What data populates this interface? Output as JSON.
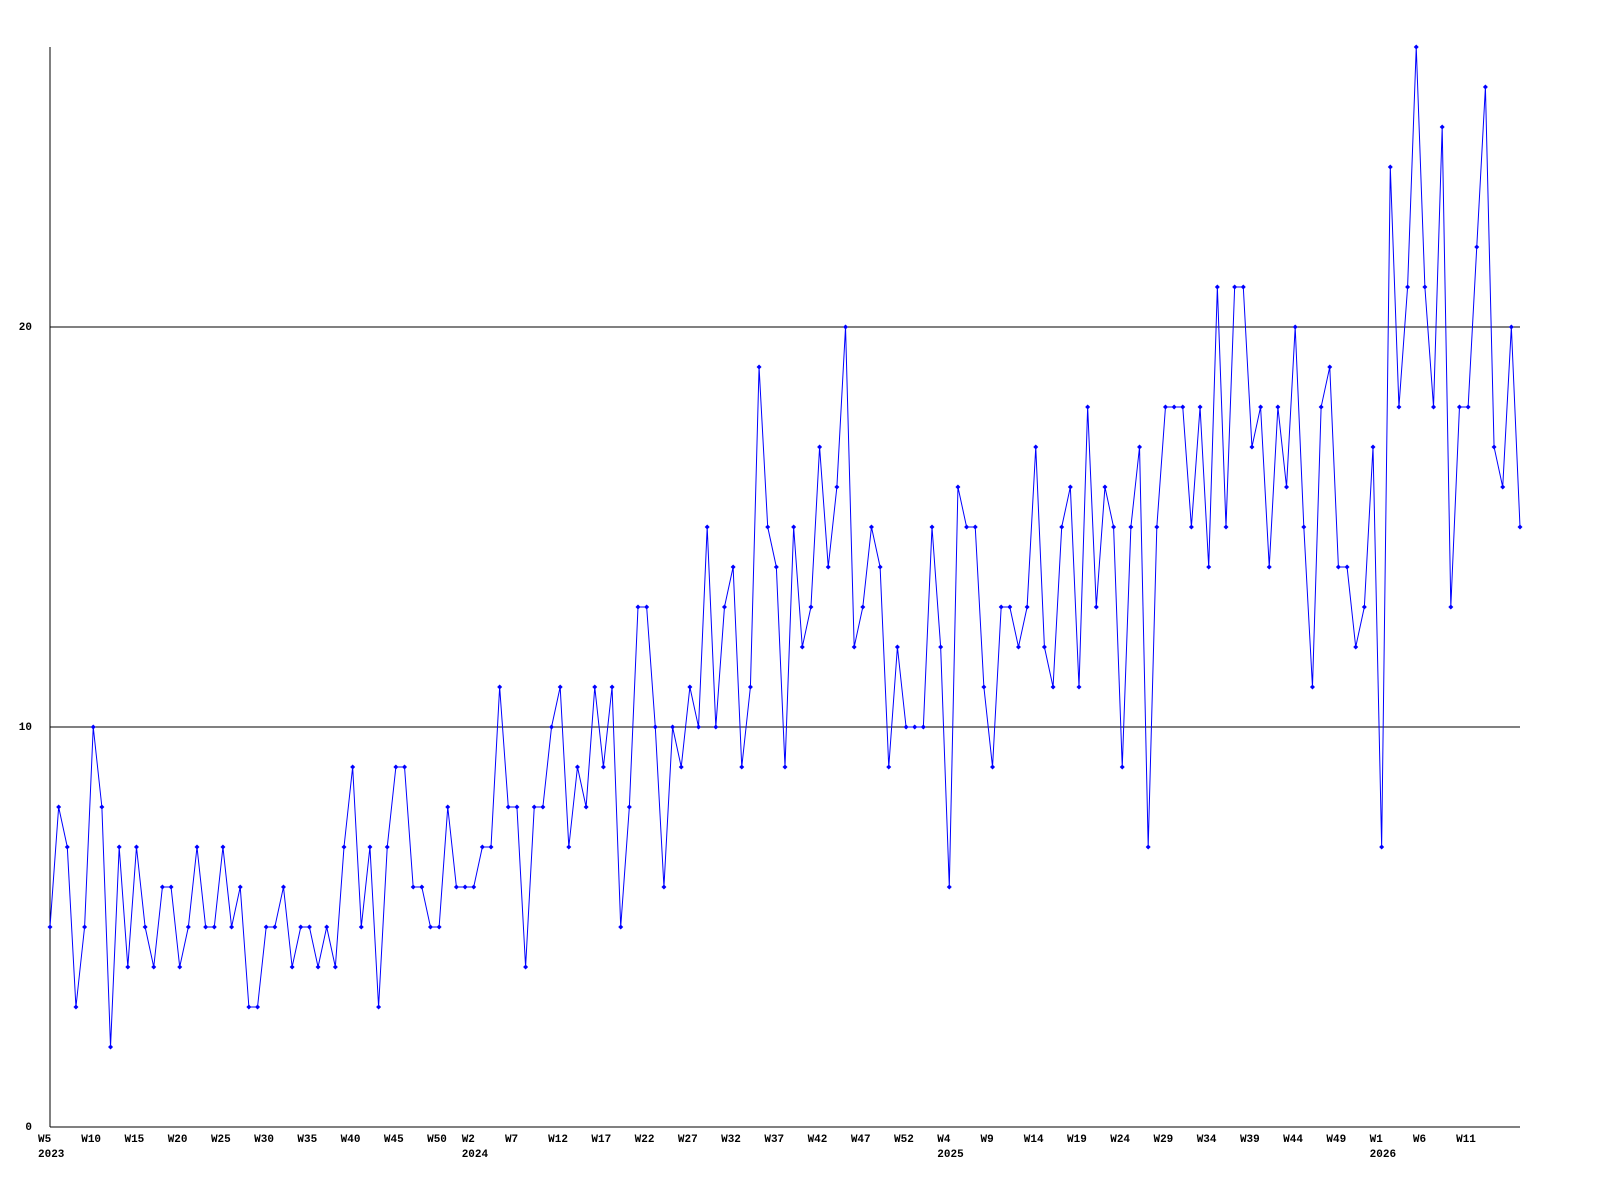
{
  "chart_data": {
    "type": "line",
    "categories": [
      "W5",
      null,
      null,
      null,
      null,
      "W10",
      null,
      null,
      null,
      null,
      "W15",
      null,
      null,
      null,
      null,
      "W20",
      null,
      null,
      null,
      null,
      "W25",
      null,
      null,
      null,
      null,
      "W30",
      null,
      null,
      null,
      null,
      "W35",
      null,
      null,
      null,
      null,
      "W40",
      null,
      null,
      null,
      null,
      "W45",
      null,
      null,
      null,
      null,
      "W50",
      null,
      null,
      null,
      "W2",
      null,
      null,
      null,
      null,
      "W7",
      null,
      null,
      null,
      null,
      "W12",
      null,
      null,
      null,
      null,
      "W17",
      null,
      null,
      null,
      null,
      "W22",
      null,
      null,
      null,
      null,
      "W27",
      null,
      null,
      null,
      null,
      "W32",
      null,
      null,
      null,
      null,
      "W37",
      null,
      null,
      null,
      null,
      "W42",
      null,
      null,
      null,
      null,
      "W47",
      null,
      null,
      null,
      null,
      "W52",
      null,
      null,
      null,
      null,
      "W4",
      null,
      null,
      null,
      null,
      "W9",
      null,
      null,
      null,
      null,
      "W14",
      null,
      null,
      null,
      null,
      "W19",
      null,
      null,
      null,
      null,
      "W24",
      null,
      null,
      null,
      null,
      "W29",
      null,
      null,
      null,
      null,
      "W34",
      null,
      null,
      null,
      null,
      "W39",
      null,
      null,
      null,
      null,
      "W44",
      null,
      null,
      null,
      null,
      "W49",
      null,
      null,
      null,
      null,
      "W1",
      null,
      null,
      null,
      null,
      "W6",
      null,
      null,
      null,
      null,
      "W11",
      null,
      null,
      null,
      null,
      null,
      null
    ],
    "year_labels": [
      "2023",
      null,
      null,
      null,
      null,
      null,
      null,
      null,
      null,
      null,
      null,
      null,
      null,
      null,
      null,
      null,
      null,
      null,
      null,
      null,
      null,
      null,
      null,
      null,
      null,
      null,
      null,
      null,
      null,
      null,
      null,
      null,
      null,
      null,
      null,
      null,
      null,
      null,
      null,
      null,
      null,
      null,
      null,
      null,
      null,
      null,
      null,
      null,
      null,
      "2024",
      null,
      null,
      null,
      null,
      null,
      null,
      null,
      null,
      null,
      null,
      null,
      null,
      null,
      null,
      null,
      null,
      null,
      null,
      null,
      null,
      null,
      null,
      null,
      null,
      null,
      null,
      null,
      null,
      null,
      null,
      null,
      null,
      null,
      null,
      null,
      null,
      null,
      null,
      null,
      null,
      null,
      null,
      null,
      null,
      null,
      null,
      null,
      null,
      null,
      null,
      null,
      null,
      null,
      null,
      "2025",
      null,
      null,
      null,
      null,
      null,
      null,
      null,
      null,
      null,
      null,
      null,
      null,
      null,
      null,
      null,
      null,
      null,
      null,
      null,
      null,
      null,
      null,
      null,
      null,
      null,
      null,
      null,
      null,
      null,
      null,
      null,
      null,
      null,
      null,
      null,
      null,
      null,
      null,
      null,
      null,
      null,
      null,
      null,
      null,
      null,
      null,
      null,
      null,
      null,
      "2026",
      null,
      null,
      null,
      null,
      null,
      null,
      null,
      null,
      null,
      null,
      null,
      null,
      null,
      null,
      null,
      null
    ],
    "values": [
      5,
      8,
      7,
      3,
      5,
      10,
      8,
      2,
      7,
      4,
      7,
      5,
      4,
      6,
      6,
      4,
      5,
      7,
      5,
      5,
      7,
      5,
      6,
      3,
      3,
      5,
      5,
      6,
      4,
      5,
      5,
      4,
      5,
      4,
      7,
      9,
      5,
      7,
      3,
      7,
      9,
      9,
      6,
      6,
      5,
      5,
      8,
      6,
      6,
      6,
      7,
      7,
      11,
      8,
      8,
      4,
      8,
      8,
      10,
      11,
      7,
      9,
      8,
      11,
      9,
      11,
      5,
      8,
      13,
      13,
      10,
      6,
      10,
      9,
      11,
      10,
      15,
      10,
      13,
      14,
      9,
      11,
      19,
      15,
      14,
      9,
      15,
      12,
      13,
      17,
      14,
      16,
      20,
      12,
      13,
      15,
      14,
      9,
      12,
      10,
      10,
      10,
      15,
      12,
      6,
      16,
      15,
      15,
      11,
      9,
      13,
      13,
      12,
      13,
      17,
      12,
      11,
      15,
      16,
      11,
      18,
      13,
      16,
      15,
      9,
      15,
      17,
      7,
      15,
      18,
      18,
      18,
      15,
      18,
      14,
      21,
      15,
      21,
      21,
      17,
      18,
      14,
      18,
      16,
      20,
      15,
      11,
      18,
      19,
      14,
      14,
      12,
      13,
      17,
      7,
      24,
      18,
      21,
      27,
      21,
      18,
      25,
      13,
      18,
      18,
      22,
      26,
      17,
      16,
      20,
      15
    ],
    "color": "#0000ff",
    "ylim": [
      0,
      27
    ],
    "yticks": [
      0,
      10,
      20
    ],
    "grid": true
  }
}
